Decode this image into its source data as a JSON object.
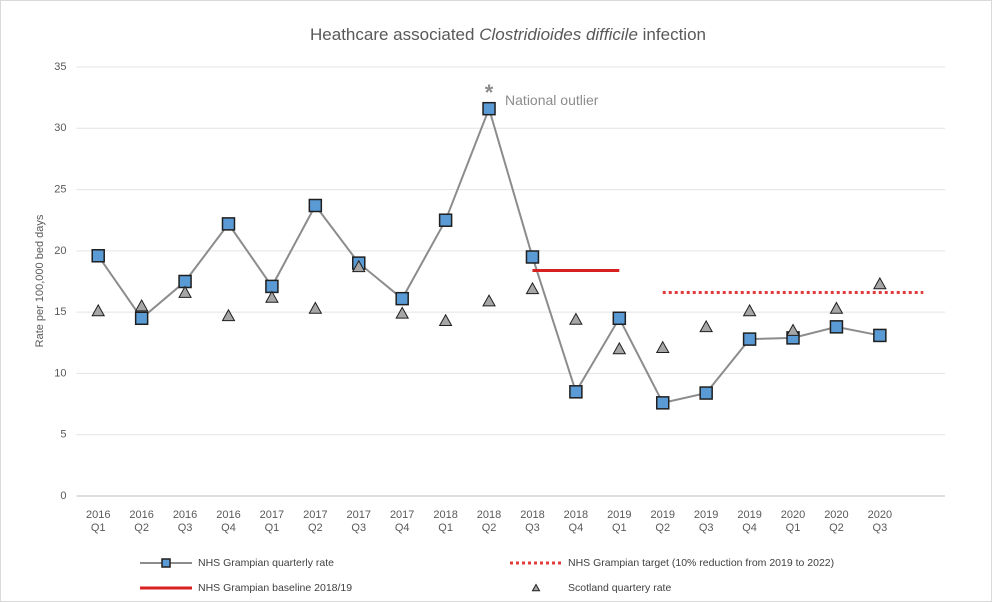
{
  "chart_data": {
    "type": "line",
    "title": [
      "Heathcare associated",
      "Clostridioides difficile",
      "infection"
    ],
    "y_label": "Rate per 100,000 bed days",
    "categories": [
      [
        "2016",
        "Q1"
      ],
      [
        "2016",
        "Q2"
      ],
      [
        "2016",
        "Q3"
      ],
      [
        "2016",
        "Q4"
      ],
      [
        "2017",
        "Q1"
      ],
      [
        "2017",
        "Q2"
      ],
      [
        "2017",
        "Q3"
      ],
      [
        "2017",
        "Q4"
      ],
      [
        "2018",
        "Q1"
      ],
      [
        "2018",
        "Q2"
      ],
      [
        "2018",
        "Q3"
      ],
      [
        "2018",
        "Q4"
      ],
      [
        "2019",
        "Q1"
      ],
      [
        "2019",
        "Q2"
      ],
      [
        "2019",
        "Q3"
      ],
      [
        "2019",
        "Q4"
      ],
      [
        "2020",
        "Q1"
      ],
      [
        "2020",
        "Q2"
      ],
      [
        "2020",
        "Q3"
      ],
      null
    ],
    "series": [
      {
        "name": "NHS Grampian quarterly rate",
        "color": "#5b9bd5",
        "line_color": "#8c8c8c",
        "line": "solid",
        "marker": "square",
        "values": [
          19.6,
          14.5,
          17.5,
          22.2,
          17.1,
          23.7,
          19.0,
          16.1,
          22.5,
          31.6,
          19.5,
          8.5,
          14.5,
          7.6,
          8.4,
          12.8,
          12.9,
          13.8,
          13.1,
          null
        ]
      },
      {
        "name": "NHS Grampian target (10% reduction from 2019 to 2022)",
        "color": "#e03c3c",
        "line_color": "#e03c3c",
        "line": "dotted",
        "marker": "none",
        "values": [
          null,
          null,
          null,
          null,
          null,
          null,
          null,
          null,
          null,
          null,
          null,
          null,
          null,
          16.6,
          16.6,
          16.6,
          16.6,
          16.6,
          16.6,
          16.6
        ]
      },
      {
        "name": "NHS Grampian baseline 2018/19",
        "color": "#d92020",
        "line_color": "#d92020",
        "line": "solid",
        "marker": "none",
        "values": [
          null,
          null,
          null,
          null,
          null,
          null,
          null,
          null,
          null,
          null,
          18.4,
          18.4,
          18.4,
          null,
          null,
          null,
          null,
          null,
          null,
          null
        ]
      },
      {
        "name": "Scotland quartery rate",
        "color": "#a6a6a6",
        "line_color": "#a6a6a6",
        "line": "none",
        "marker": "triangle",
        "values": [
          15.1,
          15.5,
          16.6,
          14.7,
          16.2,
          15.3,
          18.7,
          14.9,
          14.3,
          15.9,
          16.9,
          14.4,
          12.0,
          12.1,
          13.8,
          15.1,
          13.5,
          15.3,
          17.3,
          null
        ]
      }
    ],
    "annotations": [
      {
        "text": "*",
        "category": 9,
        "value": 33.1
      },
      {
        "text": "National outlier",
        "category": 9,
        "value": 32.2
      }
    ],
    "ylim": [
      0,
      35
    ],
    "yticks": [
      0,
      5,
      10,
      15,
      20,
      25,
      30,
      35
    ],
    "grid": true
  }
}
